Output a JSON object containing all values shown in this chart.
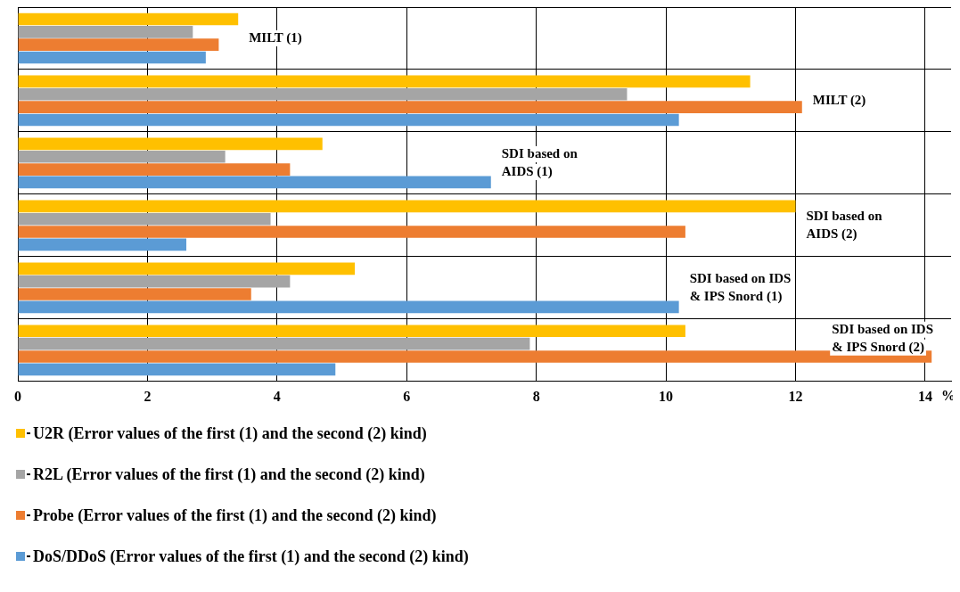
{
  "chart_data": {
    "type": "bar",
    "orientation": "horizontal",
    "xlabel": "%",
    "categories": [
      "MILT (1)",
      "MILT (2)",
      "SDI based on AIDS (1)",
      "SDI based on AIDS (2)",
      "SDI based on IDS & IPS Snord (1)",
      "SDI based on IDS & IPS Snord (2)"
    ],
    "series": [
      {
        "name": "U2R (Error values of the first (1) and the second (2) kind)",
        "color": "#ffc000",
        "values": [
          3.4,
          11.3,
          4.7,
          12.0,
          5.2,
          10.3
        ]
      },
      {
        "name": "R2L (Error values of the first (1) and the second (2) kind)",
        "color": "#a5a5a5",
        "values": [
          2.7,
          9.4,
          3.2,
          3.9,
          4.2,
          7.9
        ]
      },
      {
        "name": "Probe (Error values of the first (1) and the second (2) kind)",
        "color": "#ed7d31",
        "values": [
          3.1,
          12.1,
          4.2,
          10.3,
          3.6,
          14.1
        ]
      },
      {
        "name": "DoS/DDoS (Error values of the first (1) and the second (2) kind)",
        "color": "#5b9bd5",
        "values": [
          2.9,
          10.2,
          7.3,
          2.6,
          10.2,
          4.9
        ]
      }
    ],
    "xlim": [
      0,
      14.4
    ],
    "xticks": [
      0,
      2,
      4,
      6,
      8,
      10,
      12,
      14
    ],
    "grid": true,
    "legend": "bottom",
    "tick_labels": "x"
  }
}
